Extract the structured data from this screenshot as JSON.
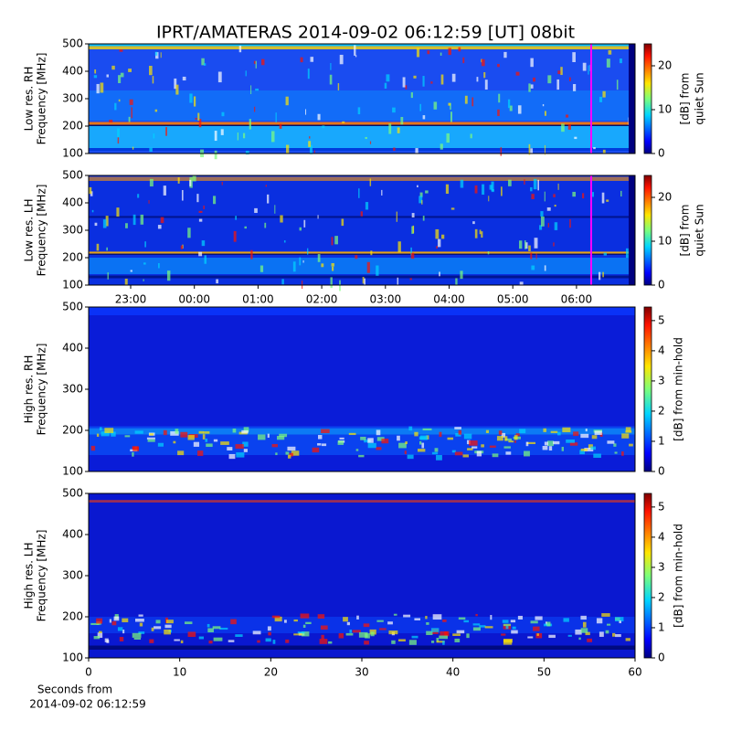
{
  "chart_data": [
    {
      "type": "heatmap",
      "title": "IPRT/AMATERAS 2014-09-02 06:12:59 [UT]   08bit",
      "ylabel": [
        "Low res. RH",
        "Frequency [MHz]"
      ],
      "ylim": [
        100,
        500
      ],
      "yticks": [
        100,
        200,
        300,
        400,
        500
      ],
      "colorbar_label": [
        "[dB] from",
        "quiet Sun"
      ],
      "clim": [
        0,
        25
      ],
      "cticks": [
        0,
        10,
        20
      ]
    },
    {
      "type": "heatmap",
      "ylabel": [
        "Low res. LH",
        "Frequency [MHz]"
      ],
      "ylim": [
        100,
        500
      ],
      "yticks": [
        100,
        200,
        300,
        400,
        500
      ],
      "colorbar_label": [
        "[dB] from",
        "quiet Sun"
      ],
      "clim": [
        0,
        25
      ],
      "cticks": [
        0,
        10,
        20
      ],
      "time_labels": [
        "23:00",
        "00:00",
        "01:00",
        "02:00",
        "03:00",
        "04:00",
        "05:00",
        "06:00"
      ]
    },
    {
      "type": "heatmap",
      "ylabel": [
        "High res. RH",
        "Frequency [MHz]"
      ],
      "ylim": [
        100,
        500
      ],
      "yticks": [
        100,
        200,
        300,
        400,
        500
      ],
      "colorbar_label": [
        "[dB] from min-hold"
      ],
      "clim": [
        0,
        5.45
      ],
      "cticks": [
        0,
        1,
        2,
        3,
        4,
        5
      ]
    },
    {
      "type": "heatmap",
      "ylabel": [
        "High res. LH",
        "Frequency [MHz]"
      ],
      "ylim": [
        100,
        500
      ],
      "yticks": [
        100,
        200,
        300,
        400,
        500
      ],
      "colorbar_label": [
        "[dB] from min-hold"
      ],
      "clim": [
        0,
        5.45
      ],
      "cticks": [
        0,
        1,
        2,
        3,
        4,
        5
      ],
      "xlim": [
        0,
        60
      ],
      "xticks": [
        0,
        10,
        20,
        30,
        40,
        50,
        60
      ],
      "xlabel": [
        "Seconds from",
        "2014-09-02 06:12:59"
      ]
    }
  ]
}
